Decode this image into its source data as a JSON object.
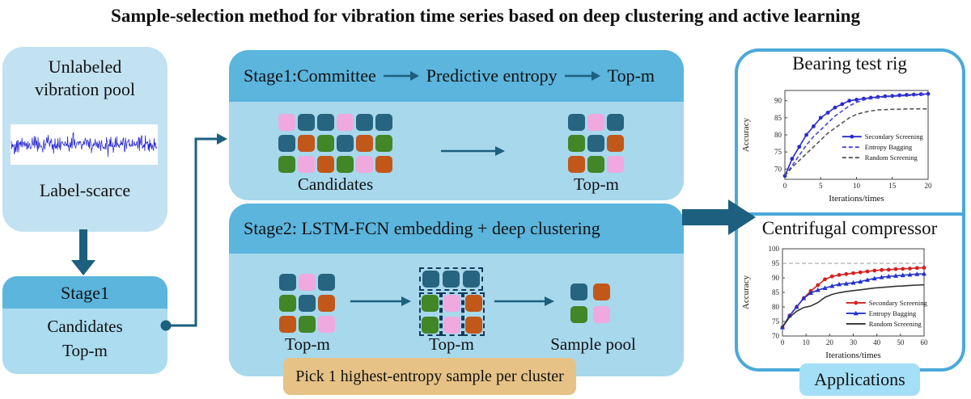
{
  "title": "Sample-selection method for vibration time series based on deep clustering and active learning",
  "palette": {
    "teal": "#266480",
    "pink": "#efa9de",
    "orange": "#c2571a",
    "green": "#418627"
  },
  "colors": {
    "panel_body_blue": "#a7d8ec",
    "panel_header_blue": "#5bb5dd",
    "pool_box_blue": "#c2e2f1",
    "arrow_teal": "#1d5f7e",
    "right_panel_border": "#4aa9d8",
    "applications_bg": "#a3dff7",
    "note_bg": "#e6c286",
    "waveform_blue": "#1c1ccf",
    "cluster_dash": "#14395c"
  },
  "left": {
    "pool_box": {
      "line1": "Unlabeled",
      "line2": "vibration pool",
      "caption": "Label-scarce"
    },
    "stage1_box": {
      "header": "Stage1",
      "line1": "Candidates",
      "line2": "Top-m"
    }
  },
  "stage1_panel": {
    "header": {
      "part1": "Stage1:Committee",
      "part2": "Predictive entropy",
      "part3": "Top-m"
    },
    "candidates_label": "Candidates",
    "topm_label": "Top-m",
    "candidates_grid": [
      [
        "pink",
        "teal",
        "teal",
        "pink",
        "teal",
        "teal"
      ],
      [
        "teal",
        "orange",
        "green",
        "teal",
        "orange",
        "green"
      ],
      [
        "green",
        "pink",
        "orange",
        "green",
        "pink",
        "orange"
      ]
    ],
    "topm_grid": [
      [
        "teal",
        "pink",
        "teal"
      ],
      [
        "green",
        "teal",
        "orange"
      ],
      [
        "orange",
        "green",
        "pink"
      ]
    ]
  },
  "stage2_panel": {
    "header": "Stage2: LSTM-FCN embedding + deep clustering",
    "topm_label_1": "Top-m",
    "topm_label_2": "Top-m",
    "samplepool_label": "Sample pool",
    "topm_grid": [
      [
        "teal",
        "pink",
        "teal"
      ],
      [
        "green",
        "teal",
        "orange"
      ],
      [
        "orange",
        "green",
        "pink"
      ]
    ],
    "clustered": {
      "row": [
        "teal",
        "teal",
        "teal"
      ],
      "columns": [
        [
          "green",
          "green"
        ],
        [
          "pink",
          "pink"
        ],
        [
          "orange",
          "orange"
        ]
      ]
    },
    "samplepool_grid": [
      [
        "teal",
        "orange"
      ],
      [
        "green",
        "pink"
      ]
    ]
  },
  "note": "Pick 1 highest-entropy sample per cluster",
  "applications_label": "Applications",
  "right": {
    "chart1_title": "Bearing test rig",
    "chart2_title": "Centrifugal compressor"
  },
  "chart_data": [
    {
      "type": "line",
      "title": "Bearing test rig",
      "xlabel": "Iterations/times",
      "ylabel": "Accuracy",
      "xlim": [
        0,
        20
      ],
      "ylim": [
        67,
        93
      ],
      "xticks": [
        0,
        5,
        10,
        15,
        20
      ],
      "yticks": [
        70,
        75,
        80,
        85,
        90
      ],
      "grid": false,
      "legend": {
        "fx": 0.4,
        "fy": 0.52
      },
      "series": [
        {
          "name": "Secondary Screening",
          "color": "#2a2acc",
          "dash": "solid",
          "marker": "circle",
          "x": [
            0,
            1,
            2,
            3,
            4,
            5,
            6,
            7,
            8,
            9,
            10,
            11,
            12,
            13,
            14,
            15,
            16,
            17,
            18,
            19,
            20
          ],
          "y": [
            68,
            73,
            76.5,
            80,
            82.5,
            85,
            86.5,
            88,
            89,
            90,
            90.3,
            90.6,
            90.9,
            91.1,
            91.3,
            91.4,
            91.6,
            91.7,
            91.8,
            91.9,
            92
          ]
        },
        {
          "name": "Entropy Bagging",
          "color": "#4444d4",
          "dash": "dashed",
          "marker": "none",
          "x": [
            0,
            1,
            2,
            3,
            4,
            5,
            6,
            7,
            8,
            9,
            10,
            11,
            12,
            13,
            14,
            15,
            16,
            17,
            18,
            19,
            20
          ],
          "y": [
            68,
            71,
            74,
            77,
            79.5,
            81.5,
            83.5,
            85.5,
            87,
            88.5,
            89.5,
            90.2,
            90.6,
            90.9,
            91.1,
            91.3,
            91.4,
            91.5,
            91.6,
            91.7,
            91.8
          ]
        },
        {
          "name": "Random Screening",
          "color": "#555555",
          "dash": "dashed",
          "marker": "none",
          "x": [
            0,
            1,
            2,
            3,
            4,
            5,
            6,
            7,
            8,
            9,
            10,
            11,
            12,
            13,
            14,
            15,
            16,
            17,
            18,
            19,
            20
          ],
          "y": [
            68,
            70.5,
            72.5,
            74.5,
            76.5,
            78.5,
            80.5,
            82,
            83.5,
            85,
            86,
            86.6,
            87,
            87.3,
            87.4,
            87.5,
            87.5,
            87.6,
            87.6,
            87.6,
            87.6
          ]
        }
      ]
    },
    {
      "type": "line",
      "title": "Centrifugal compressor",
      "xlabel": "Iterations/times",
      "ylabel": "Accuracy",
      "xlim": [
        0,
        60
      ],
      "ylim": [
        70,
        100
      ],
      "xticks": [
        0,
        10,
        20,
        30,
        40,
        50,
        60
      ],
      "yticks": [
        70,
        75,
        80,
        85,
        90,
        95,
        100
      ],
      "grid": false,
      "hline": 95,
      "legend": {
        "fx": 0.45,
        "fy": 0.62
      },
      "series": [
        {
          "name": "Secondary Screening",
          "color": "#d42020",
          "dash": "solid",
          "marker": "circle",
          "x": [
            0,
            3,
            6,
            9,
            12,
            15,
            18,
            21,
            24,
            27,
            30,
            33,
            36,
            39,
            42,
            45,
            48,
            51,
            54,
            57,
            60
          ],
          "y": [
            73,
            77,
            80,
            83,
            85.5,
            87.5,
            89.5,
            90.5,
            91,
            91.3,
            91.6,
            91.9,
            92.2,
            92.5,
            92.7,
            92.8,
            93,
            93.1,
            93.2,
            93.4,
            93.5
          ]
        },
        {
          "name": "Entropy Bagging",
          "color": "#2233cc",
          "dash": "solid",
          "marker": "triangle",
          "x": [
            0,
            3,
            6,
            9,
            12,
            15,
            18,
            21,
            24,
            27,
            30,
            33,
            36,
            39,
            42,
            45,
            48,
            51,
            54,
            57,
            60
          ],
          "y": [
            73,
            77,
            80,
            83,
            84.8,
            85.8,
            86.5,
            87.2,
            87.8,
            88,
            88.3,
            88.7,
            89.3,
            89.8,
            90.2,
            90.5,
            90.7,
            90.9,
            91.1,
            91.3,
            91.4
          ]
        },
        {
          "name": "Random Screening",
          "color": "#333333",
          "dash": "solid",
          "marker": "none",
          "x": [
            0,
            3,
            6,
            9,
            12,
            15,
            18,
            21,
            24,
            27,
            30,
            33,
            36,
            39,
            42,
            45,
            48,
            51,
            54,
            57,
            60
          ],
          "y": [
            73,
            76.5,
            78.5,
            79.8,
            80.3,
            81.5,
            83.3,
            84.3,
            84.9,
            85.3,
            85.6,
            85.9,
            86.2,
            86.5,
            86.7,
            86.9,
            87.1,
            87.2,
            87.4,
            87.5,
            87.6
          ]
        }
      ]
    }
  ]
}
